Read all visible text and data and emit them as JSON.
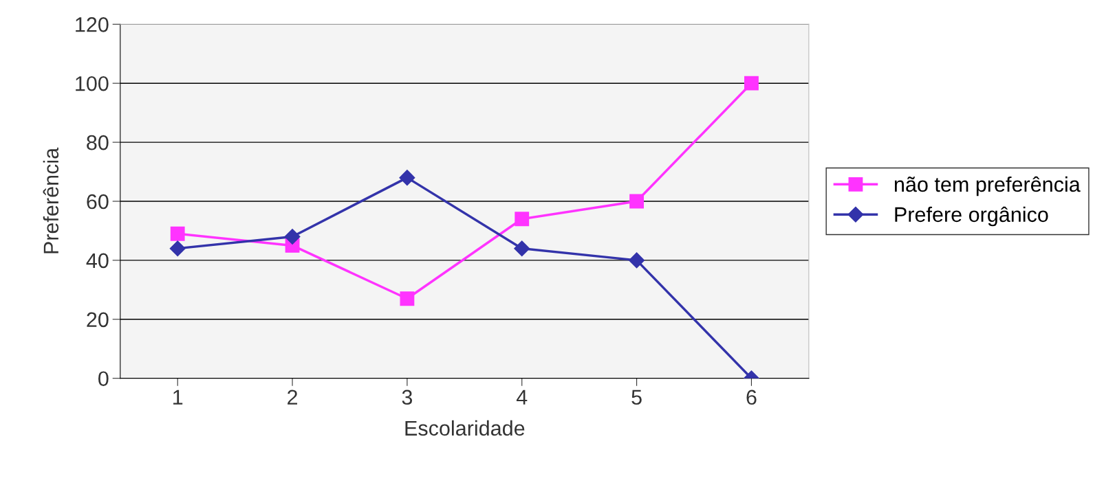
{
  "chart_data": {
    "type": "line",
    "xlabel": "Escolaridade",
    "ylabel": "Preferência",
    "categories": [
      "1",
      "2",
      "3",
      "4",
      "5",
      "6"
    ],
    "series": [
      {
        "name": "não tem preferência",
        "color": "#ff33ff",
        "marker": "square",
        "values": [
          49,
          45,
          27,
          54,
          60,
          100
        ]
      },
      {
        "name": "Prefere orgânico",
        "color": "#3333aa",
        "marker": "diamond",
        "values": [
          44,
          48,
          68,
          44,
          40,
          0
        ]
      }
    ],
    "ylim": [
      0,
      120
    ],
    "yticks": [
      0,
      20,
      40,
      60,
      80,
      100,
      120
    ],
    "grid": "y",
    "legend": "right",
    "line_style": "solid"
  }
}
